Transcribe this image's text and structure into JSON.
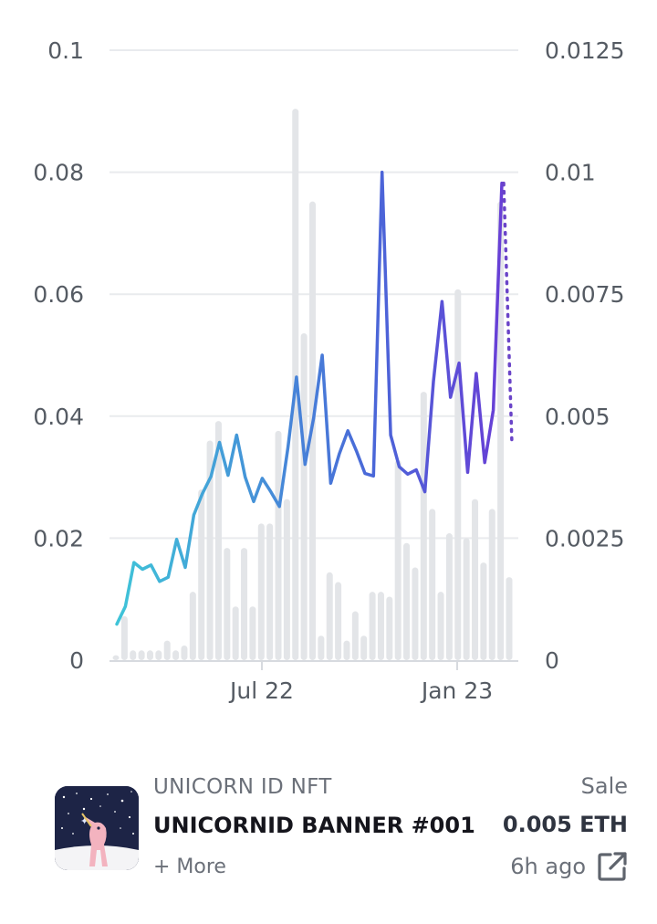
{
  "chart_data": {
    "type": "line",
    "title": "",
    "xlabel": "",
    "ylabel": "",
    "x_tick_labels": [
      "Jul 22",
      "Jan 23"
    ],
    "y_left": {
      "ylim": [
        0,
        0.1
      ],
      "ticks": [
        "0",
        "0.02",
        "0.04",
        "0.06",
        "0.08",
        "0.1"
      ]
    },
    "y_right": {
      "ylim": [
        0,
        0.0125
      ],
      "ticks": [
        "0",
        "0.0025",
        "0.005",
        "0.0075",
        "0.01",
        "0.0125"
      ]
    },
    "grid": true,
    "series": [
      {
        "kind": "line",
        "axis": "left",
        "gradient": [
          "#3fc4d8",
          "#4a67d8",
          "#6a3cd6"
        ],
        "values": [
          0.0059,
          0.0088,
          0.016,
          0.0149,
          0.0156,
          0.0129,
          0.0136,
          0.0198,
          0.0152,
          0.0238,
          0.0273,
          0.0301,
          0.0357,
          0.0303,
          0.0369,
          0.03,
          0.026,
          0.0298,
          0.0276,
          0.0252,
          0.0349,
          0.0464,
          0.0321,
          0.0397,
          0.05,
          0.029,
          0.0338,
          0.0376,
          0.0343,
          0.0306,
          0.0302,
          0.08,
          0.0369,
          0.0317,
          0.0305,
          0.0312,
          0.0276,
          0.0457,
          0.0588,
          0.0431,
          0.0487,
          0.0308,
          0.047,
          0.0324,
          0.041,
          0.0782
        ]
      },
      {
        "kind": "line-dotted",
        "axis": "left",
        "color": "#6a44c8",
        "values": [
          0.0782,
          0.0355
        ]
      },
      {
        "kind": "bar",
        "axis": "right",
        "color": "#e3e5e8",
        "values": [
          0.0001,
          0.0009,
          0.0002,
          0.0002,
          0.0002,
          0.0002,
          0.0004,
          0.0002,
          0.0003,
          0.0014,
          0.0035,
          0.0045,
          0.0049,
          0.0023,
          0.0011,
          0.0023,
          0.0011,
          0.0028,
          0.0028,
          0.0047,
          0.0033,
          0.0113,
          0.0067,
          0.0094,
          0.0005,
          0.0018,
          0.0016,
          0.0004,
          0.001,
          0.0005,
          0.0014,
          0.0014,
          0.0013,
          0.0041,
          0.0024,
          0.0019,
          0.0055,
          0.0031,
          0.0014,
          0.0026,
          0.0076,
          0.0025,
          0.0033,
          0.002,
          0.0031,
          0.0094,
          0.0017
        ]
      }
    ]
  },
  "activity": {
    "collection": "UNICORN ID NFT",
    "item_name": "UNICORNID BANNER #001",
    "more_label": "+ More",
    "event_type": "Sale",
    "price": "0.005 ETH",
    "time_ago": "6h ago",
    "icons": {
      "external": "external-link-icon",
      "thumbnail": "nft-thumbnail"
    }
  }
}
